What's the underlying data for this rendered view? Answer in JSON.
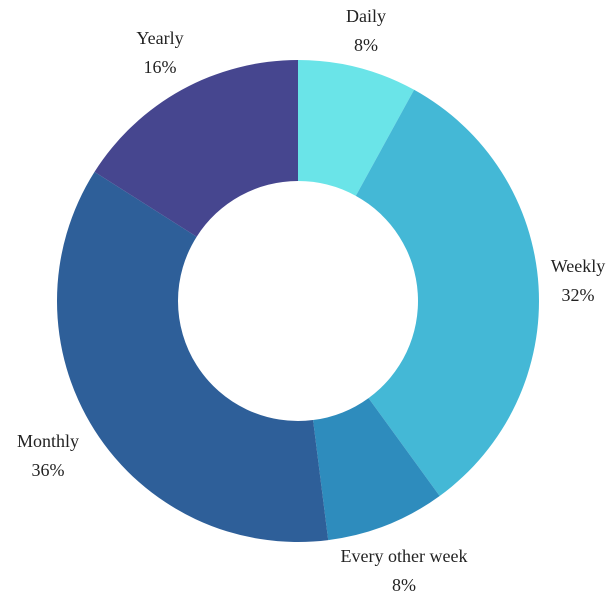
{
  "chart_data": {
    "type": "donut",
    "categories": [
      "Daily",
      "Weekly",
      "Every other week",
      "Monthly",
      "Yearly"
    ],
    "values": [
      8,
      32,
      8,
      36,
      16
    ],
    "value_labels": [
      "8%",
      "32%",
      "8%",
      "36%",
      "16%"
    ],
    "colors": [
      "#6ae4e8",
      "#44b8d6",
      "#2e8cbd",
      "#2e5f99",
      "#46468f"
    ]
  }
}
